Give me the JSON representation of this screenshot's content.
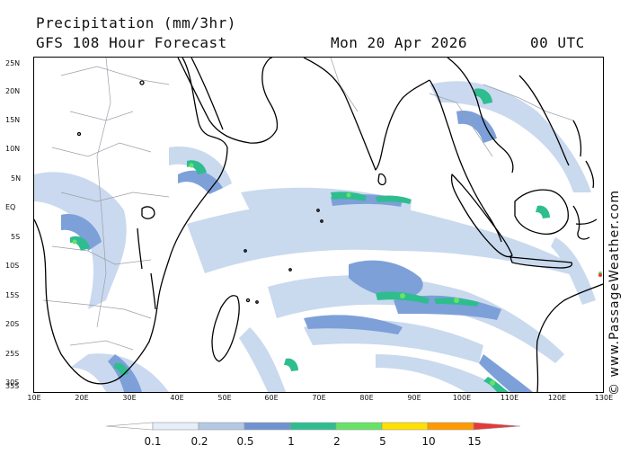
{
  "header": {
    "title": "Precipitation (mm/3hr)",
    "subtitle": "GFS 108 Hour Forecast",
    "date": "Mon 20 Apr 2026",
    "time": "00 UTC"
  },
  "credit": "© www.PassageWeather.com",
  "axes": {
    "lat_labels": [
      "25N",
      "20N",
      "15N",
      "10N",
      "5N",
      "EQ",
      "5S",
      "10S",
      "15S",
      "20S",
      "25S",
      "30S",
      "35S"
    ],
    "lon_labels": [
      "10E",
      "20E",
      "30E",
      "40E",
      "50E",
      "60E",
      "70E",
      "80E",
      "90E",
      "100E",
      "110E",
      "120E",
      "130E"
    ]
  },
  "legend": {
    "labels": [
      "0.1",
      "0.2",
      "0.5",
      "1",
      "2",
      "5",
      "10",
      "15"
    ],
    "colors": [
      "#ffffff",
      "#e6eef8",
      "#b4c8e4",
      "#6f93d0",
      "#2fbd8f",
      "#66e366",
      "#ffe000",
      "#ff9a00",
      "#e8393a"
    ]
  },
  "colors": {
    "land_outline": "#000000",
    "border": "#9aa0a8",
    "light_rain": "#c7d7ee",
    "moderate_rain": "#7da0d8",
    "heavy_rain": "#2fbd8f"
  }
}
